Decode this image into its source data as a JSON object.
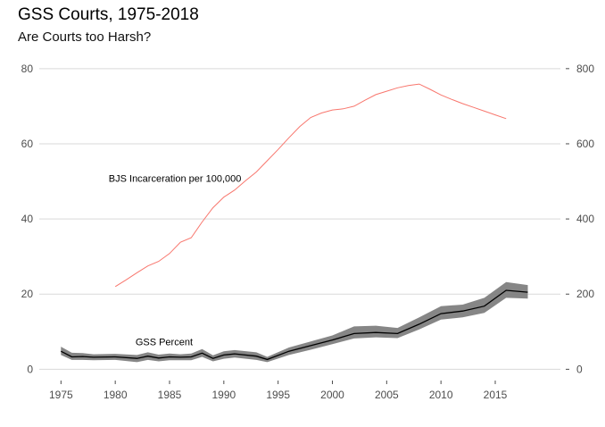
{
  "chart_data": {
    "type": "line",
    "title": "GSS Courts, 1975-2018",
    "subtitle": "Are Courts too Harsh?",
    "xlabel": "",
    "ylabel": "",
    "xlim": [
      1973,
      2021
    ],
    "ylim": [
      -3,
      84
    ],
    "y2lim": [
      -30,
      840
    ],
    "x_ticks": [
      1975,
      1980,
      1985,
      1990,
      1995,
      2000,
      2005,
      2010,
      2015
    ],
    "y_ticks": [
      0,
      20,
      40,
      60,
      80
    ],
    "y2_ticks": [
      0,
      200,
      400,
      600,
      800
    ],
    "grid": "horizontal",
    "annotations": [
      {
        "text": "BJS Incarceration per 100,000",
        "x": 1985.5,
        "y": 50.8
      },
      {
        "text": "GSS Percent",
        "x": 1984.5,
        "y": 7.3
      }
    ],
    "series": [
      {
        "axis": "right",
        "color": "#f8766d",
        "x": [
          1980,
          1981,
          1982,
          1983,
          1984,
          1985,
          1986,
          1987,
          1988,
          1989,
          1990,
          1991,
          1992,
          1993,
          1994,
          1995,
          1996,
          1997,
          1998,
          1999,
          2000,
          2001,
          2002,
          2003,
          2004,
          2005,
          2006,
          2007,
          2008,
          2009,
          2010,
          2011,
          2012,
          2013,
          2014,
          2015,
          2016
        ],
        "values": [
          220,
          238,
          257,
          275,
          287,
          308,
          338,
          350,
          392,
          430,
          458,
          477,
          502,
          525,
          555,
          585,
          616,
          646,
          670,
          682,
          690,
          693,
          700,
          716,
          731,
          740,
          749,
          755,
          759,
          745,
          730,
          718,
          707,
          697,
          687,
          677,
          667
        ]
      },
      {
        "axis": "left",
        "color": "#000000",
        "x": [
          1975,
          1976,
          1977,
          1978,
          1980,
          1982,
          1983,
          1984,
          1985,
          1986,
          1987,
          1988,
          1989,
          1990,
          1991,
          1993,
          1994,
          1996,
          1998,
          2000,
          2002,
          2004,
          2006,
          2008,
          2010,
          2012,
          2014,
          2016,
          2018
        ],
        "values": [
          4.8,
          3.3,
          3.4,
          3.2,
          3.3,
          2.9,
          3.5,
          3.0,
          3.3,
          3.2,
          3.3,
          4.3,
          2.9,
          3.8,
          4.1,
          3.5,
          2.6,
          4.8,
          6.3,
          7.8,
          9.5,
          9.8,
          9.5,
          12.0,
          14.8,
          15.5,
          16.8,
          21.0,
          20.5
        ],
        "band_low": [
          3.8,
          2.5,
          2.5,
          2.4,
          2.5,
          1.9,
          2.5,
          2.1,
          2.4,
          2.4,
          2.4,
          3.3,
          2.1,
          2.8,
          3.1,
          2.5,
          1.9,
          3.8,
          5.2,
          6.7,
          8.2,
          8.5,
          8.3,
          10.6,
          13.2,
          13.8,
          15.0,
          19.0,
          18.8
        ],
        "band_high": [
          6.0,
          4.4,
          4.3,
          4.0,
          4.1,
          3.8,
          4.5,
          3.9,
          4.2,
          4.0,
          4.2,
          5.4,
          3.7,
          4.8,
          5.1,
          4.5,
          3.3,
          5.8,
          7.4,
          9.0,
          11.4,
          11.6,
          11.0,
          13.8,
          16.8,
          17.2,
          19.0,
          23.2,
          22.4
        ]
      }
    ]
  }
}
